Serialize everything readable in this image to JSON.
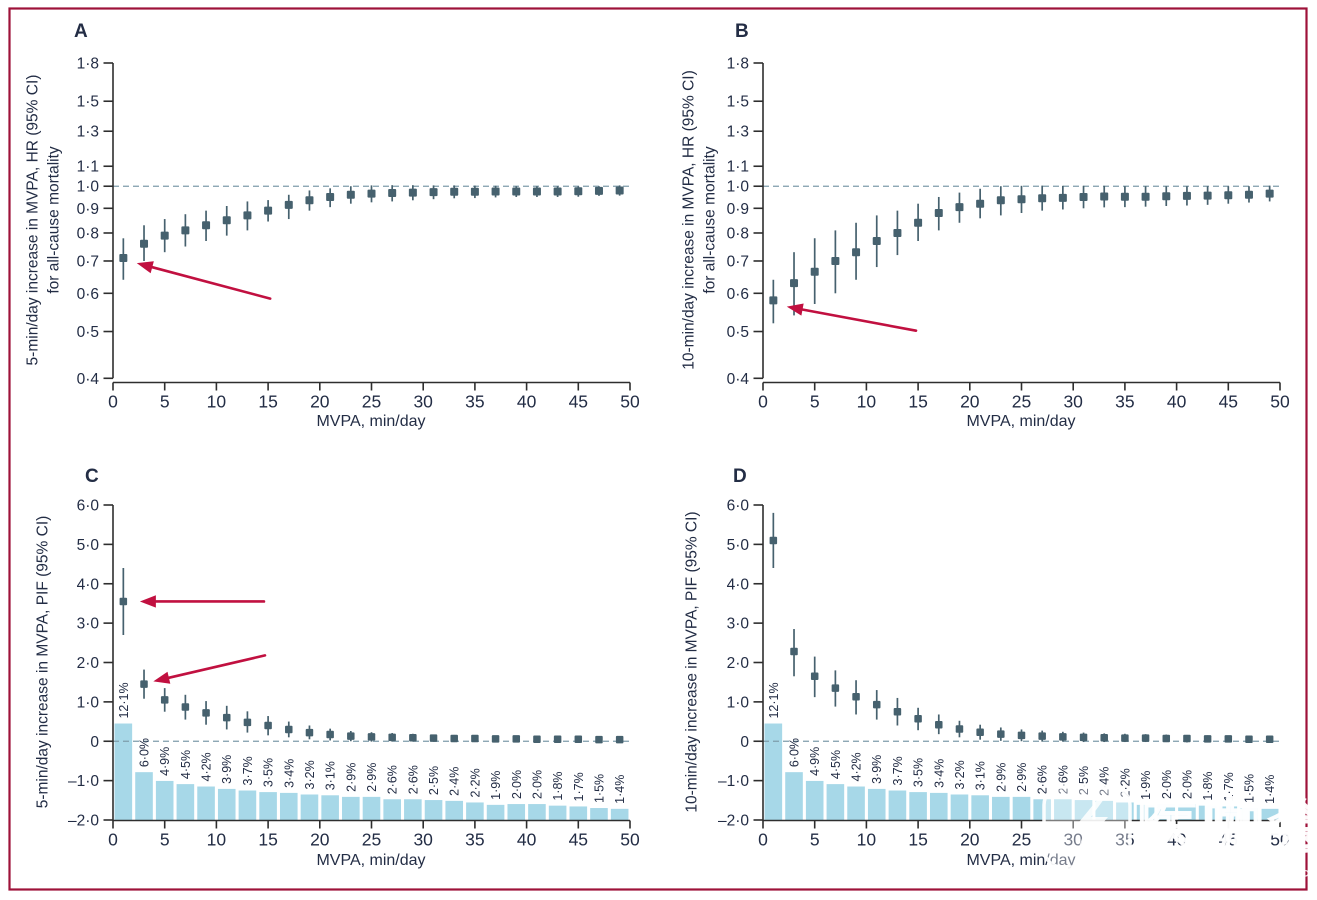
{
  "figure": {
    "colors": {
      "marker": "#46616e",
      "bar": "#a7d8e8",
      "arrow": "#c11040",
      "ref_line": "#7e9cab",
      "axis": "#2e2e2e",
      "text": "#232d45",
      "border": "#9e1239"
    },
    "watermark": {
      "text_cn": "医咖会",
      "text_en": "MEDIECO GROUP",
      "logo": "lightning-bolt-badge"
    }
  },
  "chart_data": [
    {
      "id": "A",
      "panel_label": "A",
      "type": "scatter",
      "ylabel_lines": [
        "5-min/day increase in MVPA, HR (95% CI)",
        "for all-cause mortality"
      ],
      "xlabel": "MVPA, min/day",
      "yscale": "log",
      "ylim": [
        0.4,
        1.8
      ],
      "yticks": [
        1.8,
        1.5,
        1.3,
        1.1,
        1.0,
        0.9,
        0.8,
        0.7,
        0.6,
        0.5,
        0.4
      ],
      "ytick_labels": [
        "1·8",
        "1·5",
        "1·3",
        "1·1",
        "1·0",
        "0·9",
        "0·8",
        "0·7",
        "0·6",
        "0·5",
        "0·4"
      ],
      "xticks": [
        0,
        5,
        10,
        15,
        20,
        25,
        30,
        35,
        40,
        45,
        50
      ],
      "ref_value": 1.0,
      "x": [
        1,
        3,
        5,
        7,
        9,
        11,
        13,
        15,
        17,
        19,
        21,
        23,
        25,
        27,
        29,
        31,
        33,
        35,
        37,
        39,
        41,
        43,
        45,
        47,
        49
      ],
      "y": [
        0.71,
        0.76,
        0.79,
        0.81,
        0.83,
        0.85,
        0.87,
        0.89,
        0.915,
        0.935,
        0.95,
        0.96,
        0.965,
        0.968,
        0.97,
        0.972,
        0.974,
        0.974,
        0.975,
        0.975,
        0.975,
        0.975,
        0.976,
        0.978,
        0.98
      ],
      "ci_lo": [
        0.64,
        0.7,
        0.73,
        0.75,
        0.77,
        0.79,
        0.81,
        0.845,
        0.855,
        0.89,
        0.905,
        0.92,
        0.926,
        0.93,
        0.935,
        0.94,
        0.944,
        0.945,
        0.948,
        0.95,
        0.95,
        0.95,
        0.951,
        0.955,
        0.956
      ],
      "ci_hi": [
        0.78,
        0.83,
        0.855,
        0.875,
        0.89,
        0.91,
        0.93,
        0.936,
        0.96,
        0.98,
        0.99,
        1.0,
        1.004,
        1.005,
        1.005,
        1.004,
        1.004,
        1.003,
        1.002,
        1.0,
        1.0,
        1.0,
        1.0,
        1.0,
        1.004
      ],
      "arrows": [
        {
          "tail": [
            15.2,
            0.585
          ],
          "tip": [
            2.3,
            0.693
          ]
        }
      ]
    },
    {
      "id": "B",
      "panel_label": "B",
      "type": "scatter",
      "ylabel_lines": [
        "10-min/day increase in MVPA, HR (95% CI)",
        "for all-cause mortality"
      ],
      "xlabel": "MVPA, min/day",
      "yscale": "log",
      "ylim": [
        0.4,
        1.8
      ],
      "yticks": [
        1.8,
        1.5,
        1.3,
        1.1,
        1.0,
        0.9,
        0.8,
        0.7,
        0.6,
        0.5,
        0.4
      ],
      "ytick_labels": [
        "1·8",
        "1·5",
        "1·3",
        "1·1",
        "1·0",
        "0·9",
        "0·8",
        "0·7",
        "0·6",
        "0·5",
        "0·4"
      ],
      "xticks": [
        0,
        5,
        10,
        15,
        20,
        25,
        30,
        35,
        40,
        45,
        50
      ],
      "ref_value": 1.0,
      "x": [
        1,
        3,
        5,
        7,
        9,
        11,
        13,
        15,
        17,
        19,
        21,
        23,
        25,
        27,
        29,
        31,
        33,
        35,
        37,
        39,
        41,
        43,
        45,
        47,
        49
      ],
      "y": [
        0.58,
        0.63,
        0.665,
        0.7,
        0.73,
        0.77,
        0.8,
        0.84,
        0.88,
        0.905,
        0.92,
        0.935,
        0.94,
        0.944,
        0.946,
        0.95,
        0.952,
        0.951,
        0.951,
        0.953,
        0.955,
        0.956,
        0.958,
        0.96,
        0.965
      ],
      "ci_lo": [
        0.52,
        0.54,
        0.57,
        0.6,
        0.64,
        0.68,
        0.72,
        0.77,
        0.81,
        0.84,
        0.858,
        0.87,
        0.88,
        0.89,
        0.895,
        0.9,
        0.904,
        0.905,
        0.907,
        0.91,
        0.912,
        0.915,
        0.92,
        0.925,
        0.93
      ],
      "ci_hi": [
        0.64,
        0.73,
        0.78,
        0.81,
        0.84,
        0.87,
        0.89,
        0.92,
        0.95,
        0.97,
        0.988,
        1.0,
        1.002,
        1.003,
        1.002,
        1.002,
        1.002,
        1.0,
        1.0,
        1.0,
        1.0,
        1.0,
        1.0,
        1.0,
        1.003
      ],
      "arrows": [
        {
          "tail": [
            14.8,
            0.502
          ],
          "tip": [
            2.3,
            0.563
          ]
        }
      ]
    },
    {
      "id": "C",
      "panel_label": "C",
      "type": "scatter+bar",
      "ylabel_lines": [
        "5-min/day increase in MVPA, PIF (95% CI)"
      ],
      "xlabel": "MVPA, min/day",
      "yscale": "linear",
      "ylim": [
        -2.0,
        6.0
      ],
      "yticks": [
        6,
        5,
        4,
        3,
        2,
        1,
        0,
        -1,
        -2
      ],
      "ytick_labels": [
        "6·0",
        "5·0",
        "4·0",
        "3·0",
        "2·0",
        "1·0",
        "0",
        "–1·0",
        "–2·0"
      ],
      "xticks": [
        0,
        5,
        10,
        15,
        20,
        25,
        30,
        35,
        40,
        45,
        50
      ],
      "ref_value": 0,
      "x": [
        1,
        3,
        5,
        7,
        9,
        11,
        13,
        15,
        17,
        19,
        21,
        23,
        25,
        27,
        29,
        31,
        33,
        35,
        37,
        39,
        41,
        43,
        45,
        47,
        49
      ],
      "y": [
        3.55,
        1.45,
        1.05,
        0.87,
        0.72,
        0.6,
        0.48,
        0.4,
        0.3,
        0.22,
        0.17,
        0.13,
        0.11,
        0.1,
        0.09,
        0.08,
        0.07,
        0.07,
        0.06,
        0.06,
        0.05,
        0.05,
        0.05,
        0.04,
        0.04
      ],
      "ci_lo": [
        2.7,
        1.08,
        0.75,
        0.55,
        0.42,
        0.3,
        0.22,
        0.15,
        0.1,
        0.05,
        0.02,
        0.0,
        -0.01,
        -0.01,
        -0.01,
        -0.01,
        -0.02,
        -0.02,
        -0.02,
        -0.02,
        -0.02,
        -0.02,
        -0.02,
        -0.02,
        -0.02
      ],
      "ci_hi": [
        4.4,
        1.82,
        1.35,
        1.18,
        1.02,
        0.9,
        0.76,
        0.64,
        0.5,
        0.4,
        0.32,
        0.26,
        0.23,
        0.21,
        0.19,
        0.17,
        0.16,
        0.15,
        0.14,
        0.13,
        0.12,
        0.12,
        0.11,
        0.1,
        0.1
      ],
      "bars_pct": [
        12.1,
        6.0,
        4.9,
        4.5,
        4.2,
        3.9,
        3.7,
        3.5,
        3.4,
        3.2,
        3.1,
        2.9,
        2.9,
        2.6,
        2.6,
        2.5,
        2.4,
        2.2,
        1.9,
        2.0,
        2.0,
        1.8,
        1.7,
        1.5,
        1.4
      ],
      "bar_labels": [
        "12·1%",
        "6·0%",
        "4·9%",
        "4·5%",
        "4·2%",
        "3·9%",
        "3·7%",
        "3·5%",
        "3·4%",
        "3·2%",
        "3·1%",
        "2·9%",
        "2·9%",
        "2·6%",
        "2·6%",
        "2·5%",
        "2·4%",
        "2·2%",
        "1·9%",
        "2·0%",
        "2·0%",
        "1·8%",
        "1·7%",
        "1·5%",
        "1·4%"
      ],
      "bar_base": -2.0,
      "bar_units_per_pct": 0.2025,
      "arrows": [
        {
          "tail": [
            14.6,
            3.55
          ],
          "tip": [
            2.6,
            3.55
          ]
        },
        {
          "tail": [
            14.7,
            2.18
          ],
          "tip": [
            3.9,
            1.52
          ]
        }
      ]
    },
    {
      "id": "D",
      "panel_label": "D",
      "type": "scatter+bar",
      "ylabel_lines": [
        "10-min/day increase in MVPA, PIF (95% CI)"
      ],
      "xlabel": "MVPA, min/day",
      "yscale": "linear",
      "ylim": [
        -2.0,
        6.0
      ],
      "yticks": [
        6,
        5,
        4,
        3,
        2,
        1,
        0,
        -1,
        -2
      ],
      "ytick_labels": [
        "6·0",
        "5·0",
        "4·0",
        "3·0",
        "2·0",
        "1·0",
        "0",
        "–1·0",
        "–2·0"
      ],
      "xticks": [
        0,
        5,
        10,
        15,
        20,
        25,
        30,
        35,
        40,
        45,
        50
      ],
      "ref_value": 0,
      "x": [
        1,
        3,
        5,
        7,
        9,
        11,
        13,
        15,
        17,
        19,
        21,
        23,
        25,
        27,
        29,
        31,
        33,
        35,
        37,
        39,
        41,
        43,
        45,
        47,
        49
      ],
      "y": [
        5.1,
        2.28,
        1.65,
        1.35,
        1.13,
        0.93,
        0.75,
        0.57,
        0.42,
        0.31,
        0.23,
        0.18,
        0.15,
        0.13,
        0.11,
        0.1,
        0.09,
        0.08,
        0.08,
        0.07,
        0.07,
        0.06,
        0.06,
        0.05,
        0.05
      ],
      "ci_lo": [
        4.4,
        1.65,
        1.12,
        0.88,
        0.68,
        0.55,
        0.4,
        0.28,
        0.18,
        0.1,
        0.04,
        0.01,
        0.0,
        -0.01,
        -0.01,
        -0.02,
        -0.02,
        -0.02,
        -0.02,
        -0.02,
        -0.03,
        -0.03,
        -0.03,
        -0.03,
        -0.03
      ],
      "ci_hi": [
        5.8,
        2.85,
        2.15,
        1.8,
        1.55,
        1.3,
        1.1,
        0.85,
        0.68,
        0.52,
        0.42,
        0.35,
        0.3,
        0.27,
        0.24,
        0.22,
        0.2,
        0.19,
        0.18,
        0.17,
        0.16,
        0.15,
        0.14,
        0.13,
        0.13
      ],
      "bars_pct": [
        12.1,
        6.0,
        4.9,
        4.5,
        4.2,
        3.9,
        3.7,
        3.5,
        3.4,
        3.2,
        3.1,
        2.9,
        2.9,
        2.6,
        2.6,
        2.5,
        2.4,
        2.2,
        1.9,
        2.0,
        2.0,
        1.8,
        1.7,
        1.5,
        1.4
      ],
      "bar_labels": [
        "12·1%",
        "6·0%",
        "4·9%",
        "4·5%",
        "4·2%",
        "3·9%",
        "3·7%",
        "3·5%",
        "3·4%",
        "3·2%",
        "3·1%",
        "2·9%",
        "2·9%",
        "2·6%",
        "2·6%",
        "2·5%",
        "2·4%",
        "2·2%",
        "1·9%",
        "2·0%",
        "2·0%",
        "1·8%",
        "1·7%",
        "1·5%",
        "1·4%"
      ],
      "bar_base": -2.0,
      "bar_units_per_pct": 0.2025,
      "arrows": []
    }
  ]
}
